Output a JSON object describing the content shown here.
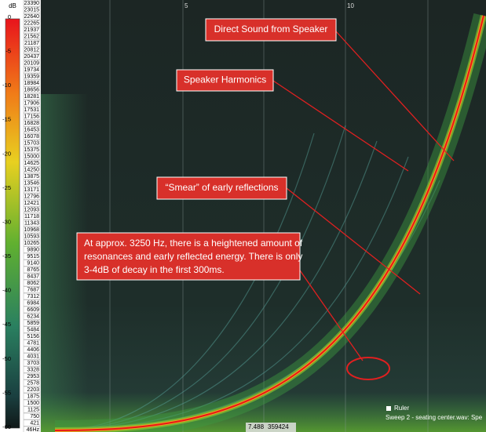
{
  "db_scale": {
    "unit": "dB",
    "labels": [
      "0",
      "-5",
      "-10",
      "-15",
      "-20",
      "-25",
      "-30",
      "-35",
      "-40",
      "-45",
      "-50",
      "-55",
      "-60"
    ]
  },
  "frequency_labels": [
    "23390",
    "23015",
    "22640",
    "22265",
    "21937",
    "21562",
    "21187",
    "20812",
    "20437",
    "20109",
    "19734",
    "19359",
    "18984",
    "18656",
    "18281",
    "17906",
    "17531",
    "17156",
    "16828",
    "16453",
    "16078",
    "15703",
    "15375",
    "15000",
    "14625",
    "14250",
    "13875",
    "13546",
    "13171",
    "12796",
    "12421",
    "12093",
    "11718",
    "11343",
    "10968",
    "10593",
    "10265",
    "9890",
    "9515",
    "9140",
    "8765",
    "8437",
    "8062",
    "7687",
    "7312",
    "6984",
    "6609",
    "6234",
    "5859",
    "5484",
    "5156",
    "4781",
    "4406",
    "4031",
    "3703",
    "3328",
    "2953",
    "2578",
    "2203",
    "1875",
    "1500",
    "1125",
    "750",
    "421",
    "46Hz"
  ],
  "time_axis": [
    "5",
    "10"
  ],
  "annotations": [
    {
      "lines": [
        "Direct Sound from Speaker"
      ]
    },
    {
      "lines": [
        "Speaker Harmonics"
      ]
    },
    {
      "lines": [
        "“Smear” of early reflections"
      ]
    },
    {
      "lines": [
        "At approx. 3250 Hz, there is a heightened amount of",
        "resonances and early reflected energy. There is only",
        "3-4dB of decay in the first 300ms."
      ]
    }
  ],
  "readout": {
    "time": "7.488",
    "value": "359424"
  },
  "legend": {
    "ruler": "Ruler",
    "sweep": "Sweep 2 - seating center.wav: Spe"
  }
}
